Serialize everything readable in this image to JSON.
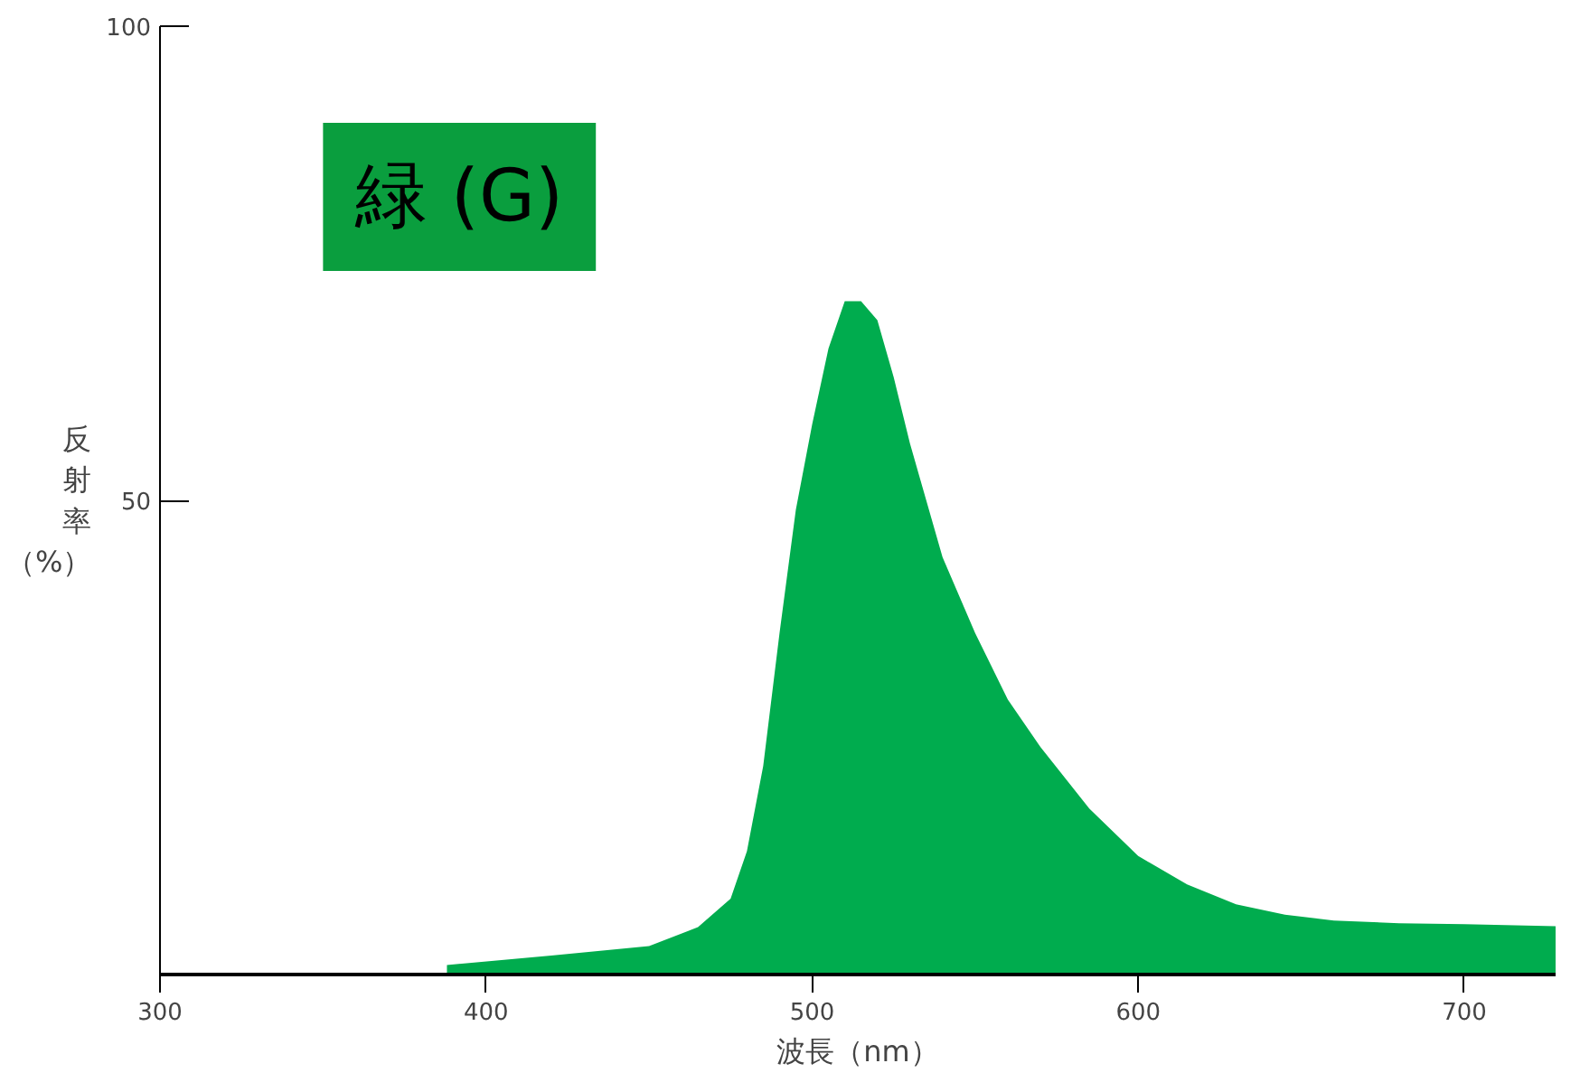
{
  "chart_data": {
    "type": "area",
    "title": "緑 (G)",
    "xlabel": "波長（nm）",
    "ylabel": "反射率（%）",
    "x": [
      388,
      420,
      450,
      465,
      475,
      480,
      485,
      490,
      495,
      500,
      505,
      510,
      515,
      520,
      525,
      530,
      540,
      550,
      560,
      570,
      585,
      600,
      615,
      630,
      645,
      660,
      680,
      700,
      728
    ],
    "series": [
      {
        "color": "#00ac4e",
        "values": [
          1,
          2,
          3,
          5,
          8,
          13,
          22,
          36,
          49,
          58,
          66,
          71,
          71,
          69,
          63,
          56,
          44,
          36,
          29,
          24,
          17.5,
          12.5,
          9.5,
          7.4,
          6.3,
          5.7,
          5.4,
          5.3,
          5.1
        ]
      }
    ],
    "xlim": [
      300,
      728
    ],
    "ylim": [
      0,
      100
    ],
    "xticks": [
      300,
      400,
      500,
      600,
      700
    ],
    "yticks": [
      50,
      100
    ],
    "grid": false
  }
}
